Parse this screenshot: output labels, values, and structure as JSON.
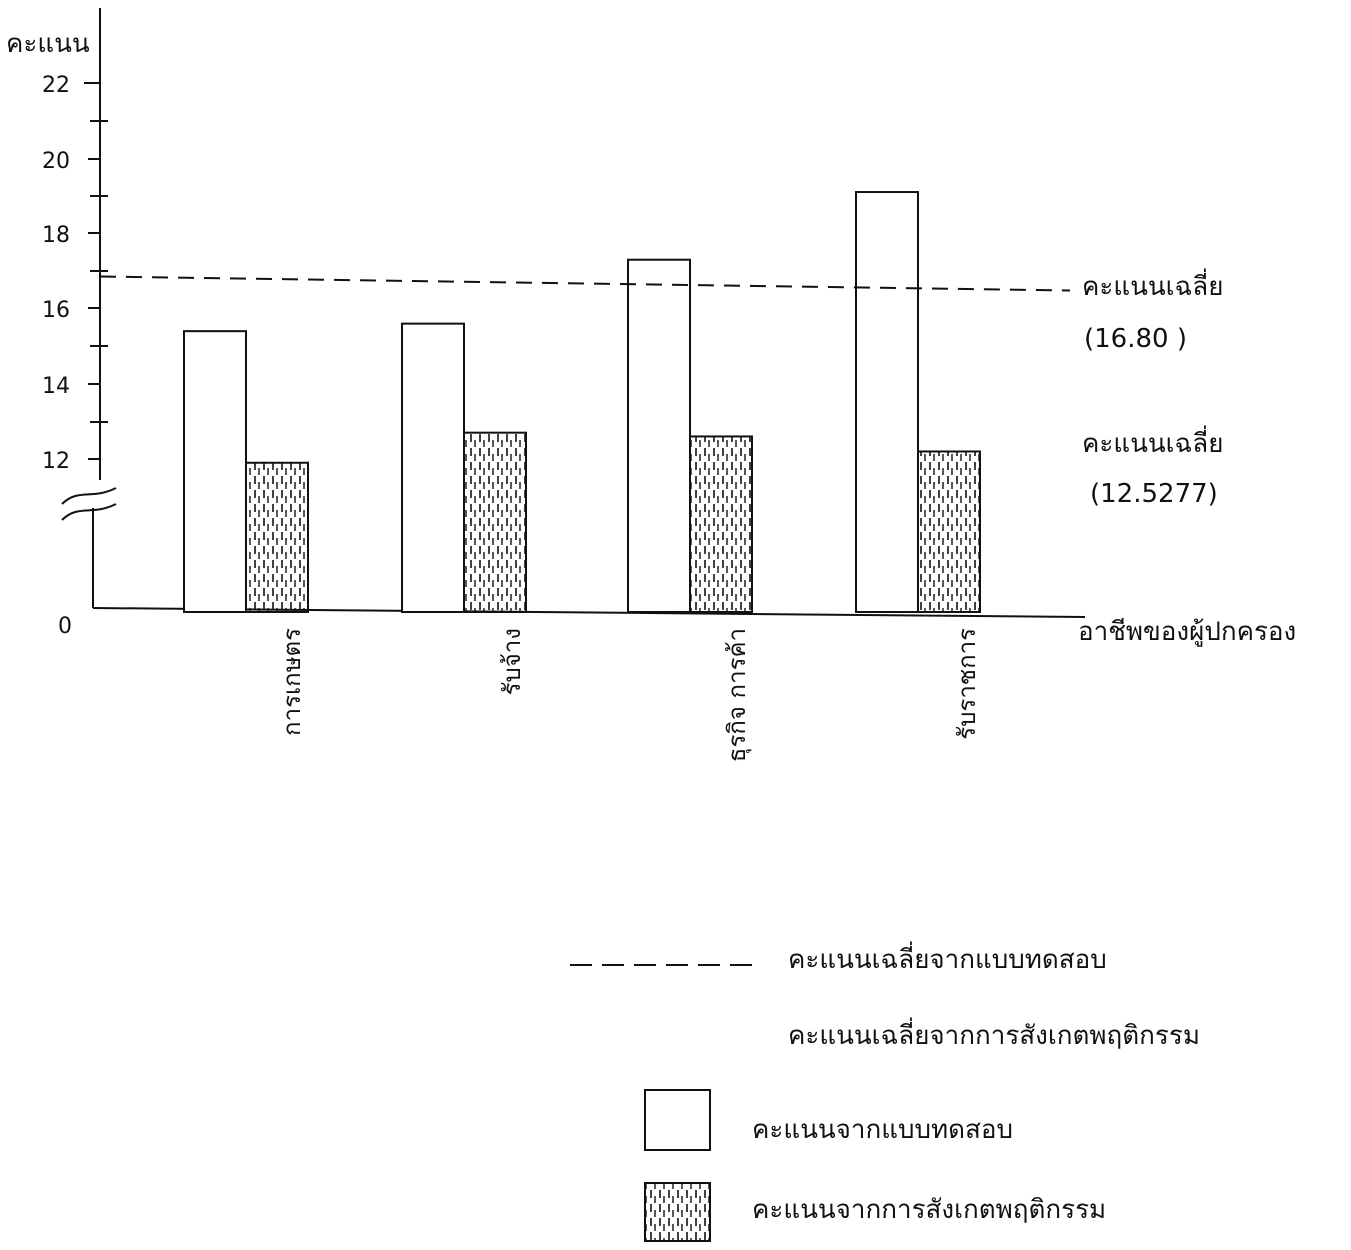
{
  "chart_data": {
    "type": "bar",
    "ylabel": "คะแนน",
    "xlabel": "อาชีพของผู้ปกครอง",
    "y_ticks": [
      "22",
      "20",
      "18",
      "16",
      "14",
      "12",
      "0"
    ],
    "y_axis_break": true,
    "ylim": [
      11,
      22
    ],
    "categories": [
      "การเกษตร",
      "รับจ้าง",
      "ธุรกิจ การค้า",
      "รับราชการ"
    ],
    "series": [
      {
        "name": "คะแนนจากแบบทดสอบ",
        "values": [
          15.4,
          15.6,
          17.3,
          19.1
        ],
        "pattern": "plain"
      },
      {
        "name": "คะแนนจากการสังเกตพฤติกรรม",
        "values": [
          11.9,
          12.7,
          12.6,
          12.2
        ],
        "pattern": "hatched"
      }
    ],
    "reference_lines": [
      {
        "name": "คะแนนเฉลี่ยจากแบบทดสอบ",
        "label": "คะแนนเฉลี่ย",
        "value_text": "(16.80 )",
        "value": 16.8
      },
      {
        "name": "คะแนนเฉลี่ยจากการสังเกตพฤติกรรม",
        "label": "คะแนนเฉลี่ย",
        "value_text": "(12.5277)",
        "value": 12.5277
      }
    ],
    "legend": {
      "placement": "bottom-right",
      "dash_line_label": "คะแนนเฉลี่ยจากแบบทดสอบ",
      "plain_line_label": "คะแนนเฉลี่ยจากการสังเกตพฤติกรรม",
      "plain_box_label": "คะแนนจากแบบทดสอบ",
      "hatched_box_label": "คะแนนจากการสังเกตพฤติกรรม"
    },
    "grid": false
  }
}
